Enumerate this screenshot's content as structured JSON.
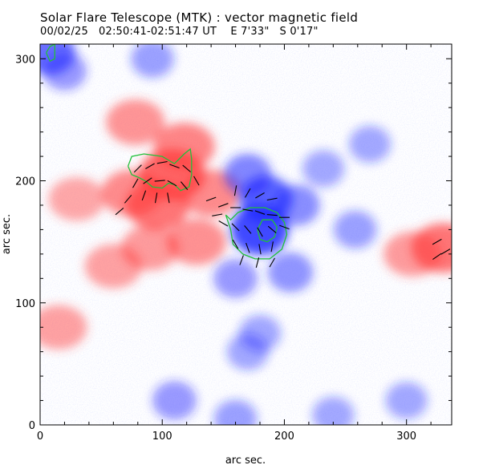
{
  "header": {
    "title": "Solar Flare Telescope (MTK) : vector magnetic field",
    "date": "00/02/25",
    "time_range": "02:50:41-02:51:47 UT",
    "pos_ew": "E 7'33\"",
    "pos_ns": "S 0'17\""
  },
  "axes": {
    "xlabel": "arc sec.",
    "ylabel": "arc sec.",
    "xlim": [
      0,
      337
    ],
    "ylim": [
      0,
      312
    ],
    "xticks": [
      0,
      100,
      200,
      300
    ],
    "yticks": [
      0,
      100,
      200,
      300
    ]
  },
  "colors": {
    "positive_polarity": "#ff3a3a",
    "negative_polarity": "#1e28ff",
    "contour": "#22c03a",
    "vector": "#000000"
  },
  "map": {
    "positive_regions": [
      {
        "x": 108,
        "y": 205,
        "strength": 0.95
      },
      {
        "x": 96,
        "y": 180,
        "strength": 0.8
      },
      {
        "x": 75,
        "y": 190,
        "strength": 0.6
      },
      {
        "x": 78,
        "y": 248,
        "strength": 0.5
      },
      {
        "x": 118,
        "y": 228,
        "strength": 0.65
      },
      {
        "x": 140,
        "y": 190,
        "strength": 0.6
      },
      {
        "x": 128,
        "y": 150,
        "strength": 0.55
      },
      {
        "x": 90,
        "y": 145,
        "strength": 0.45
      },
      {
        "x": 30,
        "y": 185,
        "strength": 0.35
      },
      {
        "x": 60,
        "y": 130,
        "strength": 0.4
      },
      {
        "x": 330,
        "y": 145,
        "strength": 0.8
      },
      {
        "x": 305,
        "y": 140,
        "strength": 0.45
      },
      {
        "x": 15,
        "y": 80,
        "strength": 0.4
      }
    ],
    "negative_regions": [
      {
        "x": 180,
        "y": 160,
        "strength": 1.0
      },
      {
        "x": 185,
        "y": 185,
        "strength": 0.8
      },
      {
        "x": 170,
        "y": 205,
        "strength": 0.55
      },
      {
        "x": 210,
        "y": 180,
        "strength": 0.5
      },
      {
        "x": 205,
        "y": 125,
        "strength": 0.45
      },
      {
        "x": 160,
        "y": 120,
        "strength": 0.4
      },
      {
        "x": 8,
        "y": 305,
        "strength": 0.7
      },
      {
        "x": 20,
        "y": 290,
        "strength": 0.4
      },
      {
        "x": 92,
        "y": 300,
        "strength": 0.35
      },
      {
        "x": 258,
        "y": 160,
        "strength": 0.35
      },
      {
        "x": 270,
        "y": 230,
        "strength": 0.3
      },
      {
        "x": 110,
        "y": 20,
        "strength": 0.4
      },
      {
        "x": 170,
        "y": 60,
        "strength": 0.3
      },
      {
        "x": 180,
        "y": 75,
        "strength": 0.3
      },
      {
        "x": 300,
        "y": 20,
        "strength": 0.3
      },
      {
        "x": 240,
        "y": 8,
        "strength": 0.3
      },
      {
        "x": 160,
        "y": 5,
        "strength": 0.35
      },
      {
        "x": 232,
        "y": 210,
        "strength": 0.3
      }
    ],
    "contours": [
      [
        [
          72,
          212
        ],
        [
          75,
          220
        ],
        [
          85,
          222
        ],
        [
          100,
          220
        ],
        [
          110,
          214
        ],
        [
          118,
          222
        ],
        [
          123,
          226
        ],
        [
          124,
          218
        ],
        [
          124,
          205
        ],
        [
          122,
          195
        ],
        [
          115,
          192
        ],
        [
          110,
          197
        ],
        [
          105,
          198
        ],
        [
          100,
          194
        ],
        [
          92,
          195
        ],
        [
          86,
          200
        ],
        [
          80,
          203
        ],
        [
          75,
          205
        ],
        [
          72,
          212
        ]
      ],
      [
        [
          152,
          172
        ],
        [
          156,
          160
        ],
        [
          158,
          148
        ],
        [
          166,
          140
        ],
        [
          176,
          136
        ],
        [
          188,
          136
        ],
        [
          198,
          144
        ],
        [
          202,
          156
        ],
        [
          200,
          166
        ],
        [
          194,
          174
        ],
        [
          184,
          178
        ],
        [
          172,
          178
        ],
        [
          162,
          174
        ],
        [
          156,
          168
        ],
        [
          152,
          172
        ]
      ],
      [
        [
          178,
          160
        ],
        [
          180,
          152
        ],
        [
          186,
          150
        ],
        [
          192,
          154
        ],
        [
          194,
          162
        ],
        [
          190,
          168
        ],
        [
          182,
          168
        ],
        [
          178,
          160
        ]
      ],
      [
        [
          5,
          305
        ],
        [
          8,
          310
        ],
        [
          12,
          312
        ],
        [
          12,
          300
        ],
        [
          8,
          298
        ],
        [
          5,
          305
        ]
      ]
    ],
    "vectors": [
      {
        "x": 80,
        "y": 210,
        "angle": 45
      },
      {
        "x": 90,
        "y": 212,
        "angle": 30
      },
      {
        "x": 100,
        "y": 215,
        "angle": 10
      },
      {
        "x": 110,
        "y": 212,
        "angle": -20
      },
      {
        "x": 120,
        "y": 210,
        "angle": -40
      },
      {
        "x": 78,
        "y": 198,
        "angle": 60
      },
      {
        "x": 88,
        "y": 200,
        "angle": 35
      },
      {
        "x": 98,
        "y": 200,
        "angle": 5
      },
      {
        "x": 108,
        "y": 198,
        "angle": -30
      },
      {
        "x": 118,
        "y": 196,
        "angle": -50
      },
      {
        "x": 128,
        "y": 200,
        "angle": -60
      },
      {
        "x": 85,
        "y": 188,
        "angle": 70
      },
      {
        "x": 95,
        "y": 186,
        "angle": 80
      },
      {
        "x": 105,
        "y": 186,
        "angle": -80
      },
      {
        "x": 72,
        "y": 185,
        "angle": 50
      },
      {
        "x": 65,
        "y": 175,
        "angle": 40
      },
      {
        "x": 160,
        "y": 192,
        "angle": 80
      },
      {
        "x": 170,
        "y": 190,
        "angle": 60
      },
      {
        "x": 180,
        "y": 188,
        "angle": 30
      },
      {
        "x": 190,
        "y": 185,
        "angle": 10
      },
      {
        "x": 150,
        "y": 180,
        "angle": 20
      },
      {
        "x": 160,
        "y": 178,
        "angle": 0
      },
      {
        "x": 170,
        "y": 176,
        "angle": -10
      },
      {
        "x": 180,
        "y": 174,
        "angle": -20
      },
      {
        "x": 190,
        "y": 172,
        "angle": -5
      },
      {
        "x": 200,
        "y": 170,
        "angle": 0
      },
      {
        "x": 150,
        "y": 165,
        "angle": -30
      },
      {
        "x": 160,
        "y": 162,
        "angle": -45
      },
      {
        "x": 170,
        "y": 160,
        "angle": -50
      },
      {
        "x": 180,
        "y": 158,
        "angle": -60
      },
      {
        "x": 190,
        "y": 160,
        "angle": -40
      },
      {
        "x": 200,
        "y": 162,
        "angle": -20
      },
      {
        "x": 160,
        "y": 148,
        "angle": -60
      },
      {
        "x": 170,
        "y": 145,
        "angle": -70
      },
      {
        "x": 180,
        "y": 144,
        "angle": -80
      },
      {
        "x": 190,
        "y": 146,
        "angle": 80
      },
      {
        "x": 165,
        "y": 135,
        "angle": 70
      },
      {
        "x": 178,
        "y": 133,
        "angle": 75
      },
      {
        "x": 190,
        "y": 133,
        "angle": 60
      },
      {
        "x": 325,
        "y": 150,
        "angle": 30
      },
      {
        "x": 332,
        "y": 142,
        "angle": 30
      },
      {
        "x": 325,
        "y": 138,
        "angle": 35
      },
      {
        "x": 145,
        "y": 172,
        "angle": 10
      },
      {
        "x": 140,
        "y": 185,
        "angle": 20
      }
    ]
  }
}
